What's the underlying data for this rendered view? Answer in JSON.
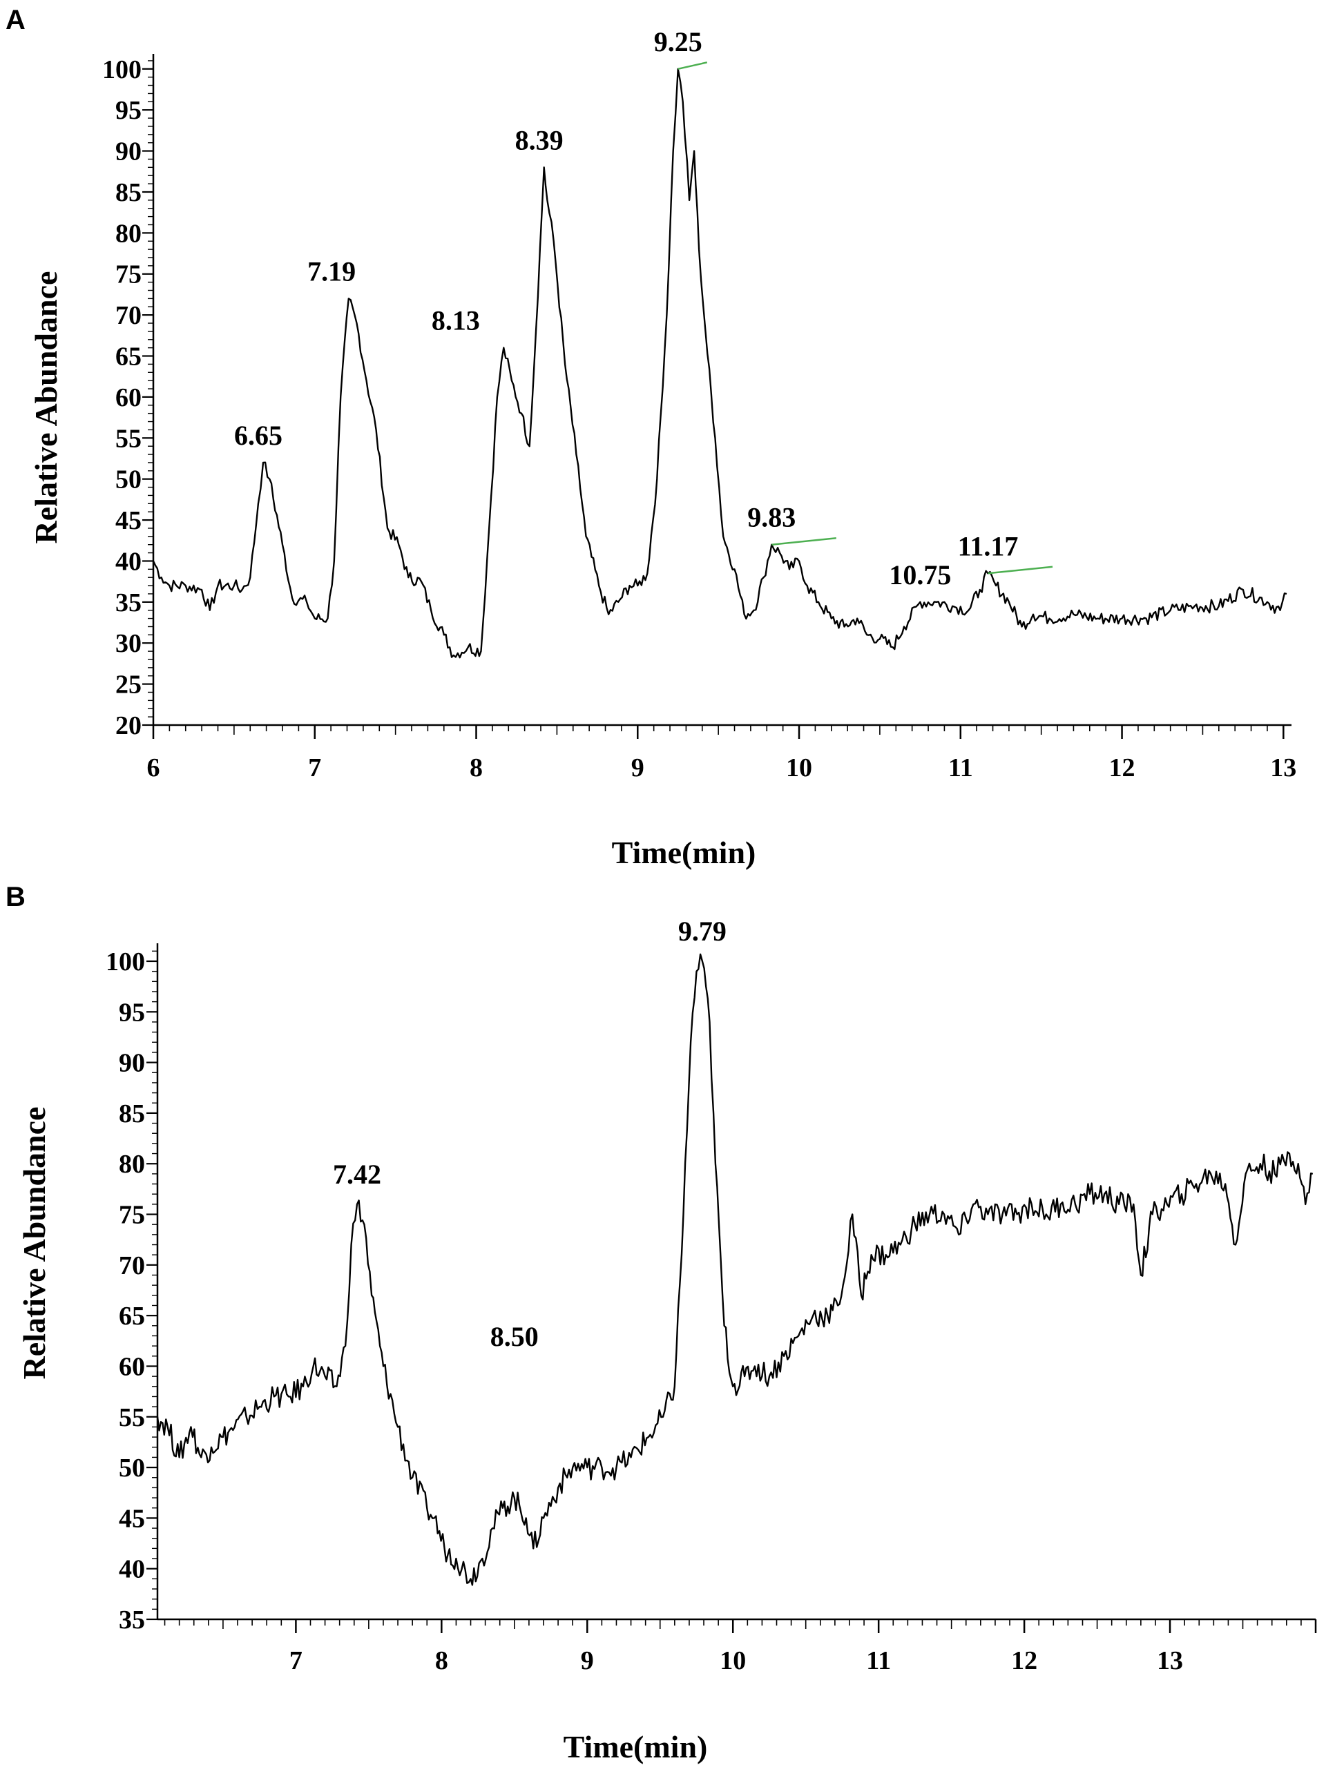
{
  "figure": {
    "panels": [
      "A",
      "B"
    ]
  },
  "chart_data": [
    {
      "panel": "A",
      "type": "line",
      "xlabel": "Time(min)",
      "ylabel": "Relative Abundance",
      "xlim": [
        6,
        13.05
      ],
      "ylim": [
        20,
        101.5
      ],
      "xticks": [
        6,
        7,
        8,
        9,
        10,
        11,
        12,
        13
      ],
      "yticks": [
        20,
        25,
        30,
        35,
        40,
        45,
        50,
        55,
        60,
        65,
        70,
        75,
        80,
        85,
        90,
        95,
        100
      ],
      "grid": false,
      "line_color": "#000000",
      "marker_color": "#4caf50",
      "series": [
        {
          "values": [
            [
              6.0,
              40
            ],
            [
              6.05,
              38
            ],
            [
              6.1,
              37
            ],
            [
              6.2,
              37
            ],
            [
              6.3,
              36.5
            ],
            [
              6.35,
              34
            ],
            [
              6.4,
              37
            ],
            [
              6.5,
              37
            ],
            [
              6.55,
              36.5
            ],
            [
              6.6,
              38
            ],
            [
              6.65,
              47
            ],
            [
              6.68,
              52
            ],
            [
              6.72,
              50
            ],
            [
              6.8,
              42
            ],
            [
              6.86,
              35.5
            ],
            [
              6.95,
              35
            ],
            [
              7.0,
              33
            ],
            [
              7.08,
              33
            ],
            [
              7.12,
              40
            ],
            [
              7.16,
              60
            ],
            [
              7.21,
              72
            ],
            [
              7.26,
              69
            ],
            [
              7.32,
              62
            ],
            [
              7.38,
              56
            ],
            [
              7.45,
              44
            ],
            [
              7.52,
              42
            ],
            [
              7.58,
              38
            ],
            [
              7.66,
              37.5
            ],
            [
              7.72,
              34
            ],
            [
              7.8,
              31
            ],
            [
              7.86,
              28.5
            ],
            [
              7.95,
              29.5
            ],
            [
              8.03,
              29
            ],
            [
              8.08,
              44
            ],
            [
              8.13,
              60
            ],
            [
              8.17,
              66
            ],
            [
              8.22,
              62
            ],
            [
              8.28,
              58
            ],
            [
              8.33,
              54
            ],
            [
              8.37,
              68
            ],
            [
              8.42,
              88
            ],
            [
              8.44,
              84
            ],
            [
              8.48,
              79
            ],
            [
              8.55,
              64
            ],
            [
              8.62,
              53
            ],
            [
              8.68,
              43
            ],
            [
              8.76,
              37
            ],
            [
              8.82,
              33.5
            ],
            [
              8.88,
              35
            ],
            [
              8.95,
              37
            ],
            [
              9.0,
              37
            ],
            [
              9.06,
              38.5
            ],
            [
              9.12,
              50
            ],
            [
              9.18,
              70
            ],
            [
              9.22,
              90
            ],
            [
              9.25,
              100
            ],
            [
              9.28,
              96
            ],
            [
              9.32,
              84
            ],
            [
              9.35,
              90
            ],
            [
              9.38,
              78
            ],
            [
              9.42,
              68
            ],
            [
              9.48,
              55
            ],
            [
              9.53,
              43
            ],
            [
              9.6,
              39
            ],
            [
              9.66,
              33.5
            ],
            [
              9.72,
              34
            ],
            [
              9.78,
              38
            ],
            [
              9.83,
              42
            ],
            [
              9.88,
              41
            ],
            [
              9.94,
              39
            ],
            [
              10.0,
              40
            ],
            [
              10.05,
              37
            ],
            [
              10.12,
              35
            ],
            [
              10.2,
              33
            ],
            [
              10.28,
              32
            ],
            [
              10.36,
              33
            ],
            [
              10.42,
              31
            ],
            [
              10.5,
              30.5
            ],
            [
              10.58,
              29.5
            ],
            [
              10.65,
              32
            ],
            [
              10.75,
              35
            ],
            [
              10.85,
              35
            ],
            [
              10.95,
              34.5
            ],
            [
              11.05,
              34
            ],
            [
              11.12,
              36.5
            ],
            [
              11.17,
              38.5
            ],
            [
              11.22,
              37
            ],
            [
              11.3,
              35
            ],
            [
              11.38,
              32
            ],
            [
              11.45,
              33.5
            ],
            [
              11.55,
              33
            ],
            [
              11.7,
              33.5
            ],
            [
              11.85,
              33
            ],
            [
              12.0,
              33
            ],
            [
              12.15,
              33
            ],
            [
              12.3,
              34
            ],
            [
              12.45,
              34.5
            ],
            [
              12.6,
              34.5
            ],
            [
              12.75,
              36.5
            ],
            [
              12.9,
              35
            ],
            [
              12.98,
              34
            ],
            [
              13.02,
              36
            ]
          ]
        }
      ],
      "annotations": [
        {
          "text": "6.65",
          "x": 6.65,
          "y": 52
        },
        {
          "text": "7.19",
          "x": 7.19,
          "y": 72
        },
        {
          "text": "8.13",
          "x": 8.13,
          "y": 66
        },
        {
          "text": "8.39",
          "x": 8.39,
          "y": 88
        },
        {
          "text": "9.25",
          "x": 9.25,
          "y": 100
        },
        {
          "text": "9.83",
          "x": 9.83,
          "y": 42
        },
        {
          "text": "10.75",
          "x": 10.75,
          "y": 35
        },
        {
          "text": "11.17",
          "x": 11.17,
          "y": 38.5
        }
      ]
    },
    {
      "panel": "B",
      "type": "line",
      "xlabel": "Time(min)",
      "ylabel": "Relative Abundance",
      "xlim": [
        6.05,
        14.0
      ],
      "ylim": [
        35,
        101.5
      ],
      "xticks": [
        7,
        8,
        9,
        10,
        11,
        12,
        13
      ],
      "yticks": [
        35,
        40,
        45,
        50,
        55,
        60,
        65,
        70,
        75,
        80,
        85,
        90,
        95,
        100
      ],
      "grid": false,
      "line_color": "#000000",
      "series": [
        {
          "values": [
            [
              6.05,
              55
            ],
            [
              6.12,
              54
            ],
            [
              6.2,
              51
            ],
            [
              6.28,
              54
            ],
            [
              6.35,
              51
            ],
            [
              6.42,
              52
            ],
            [
              6.5,
              53
            ],
            [
              6.58,
              54
            ],
            [
              6.66,
              55
            ],
            [
              6.75,
              56
            ],
            [
              6.85,
              57
            ],
            [
              6.95,
              57
            ],
            [
              7.05,
              58
            ],
            [
              7.12,
              60
            ],
            [
              7.2,
              59
            ],
            [
              7.28,
              58
            ],
            [
              7.34,
              62
            ],
            [
              7.38,
              72
            ],
            [
              7.42,
              76
            ],
            [
              7.47,
              74
            ],
            [
              7.52,
              67
            ],
            [
              7.6,
              60
            ],
            [
              7.7,
              54
            ],
            [
              7.8,
              49
            ],
            [
              7.9,
              46
            ],
            [
              7.95,
              45
            ],
            [
              8.02,
              42
            ],
            [
              8.1,
              41
            ],
            [
              8.2,
              39
            ],
            [
              8.28,
              41
            ],
            [
              8.35,
              44
            ],
            [
              8.42,
              46
            ],
            [
              8.5,
              47
            ],
            [
              8.58,
              45
            ],
            [
              8.63,
              42
            ],
            [
              8.7,
              45
            ],
            [
              8.8,
              48
            ],
            [
              8.9,
              50
            ],
            [
              9.0,
              50
            ],
            [
              9.1,
              50
            ],
            [
              9.2,
              50
            ],
            [
              9.3,
              51
            ],
            [
              9.42,
              53
            ],
            [
              9.52,
              55
            ],
            [
              9.6,
              58
            ],
            [
              9.66,
              75
            ],
            [
              9.71,
              92
            ],
            [
              9.75,
              99
            ],
            [
              9.79,
              100
            ],
            [
              9.84,
              94
            ],
            [
              9.88,
              80
            ],
            [
              9.94,
              64
            ],
            [
              10.0,
              58
            ],
            [
              10.08,
              59
            ],
            [
              10.15,
              60
            ],
            [
              10.25,
              59
            ],
            [
              10.35,
              61
            ],
            [
              10.45,
              63
            ],
            [
              10.55,
              65
            ],
            [
              10.65,
              65
            ],
            [
              10.72,
              66
            ],
            [
              10.78,
              70
            ],
            [
              10.82,
              75
            ],
            [
              10.88,
              67
            ],
            [
              10.95,
              71
            ],
            [
              11.05,
              71
            ],
            [
              11.15,
              72
            ],
            [
              11.25,
              74
            ],
            [
              11.35,
              75
            ],
            [
              11.45,
              75
            ],
            [
              11.55,
              73
            ],
            [
              11.65,
              76
            ],
            [
              11.75,
              75
            ],
            [
              11.85,
              75
            ],
            [
              11.95,
              75
            ],
            [
              12.05,
              76
            ],
            [
              12.15,
              75
            ],
            [
              12.25,
              76
            ],
            [
              12.35,
              76
            ],
            [
              12.45,
              77
            ],
            [
              12.55,
              77
            ],
            [
              12.65,
              76
            ],
            [
              12.75,
              76
            ],
            [
              12.8,
              69
            ],
            [
              12.88,
              75
            ],
            [
              12.98,
              76
            ],
            [
              13.08,
              77
            ],
            [
              13.18,
              78
            ],
            [
              13.28,
              79
            ],
            [
              13.38,
              78
            ],
            [
              13.45,
              72
            ],
            [
              13.52,
              79
            ],
            [
              13.62,
              80
            ],
            [
              13.72,
              79
            ],
            [
              13.82,
              81
            ],
            [
              13.88,
              80
            ],
            [
              13.93,
              76
            ],
            [
              13.98,
              79
            ]
          ]
        }
      ],
      "annotations": [
        {
          "text": "7.42",
          "x": 7.42,
          "y": 76
        },
        {
          "text": "8.50",
          "x": 8.5,
          "y": 47
        },
        {
          "text": "9.79",
          "x": 9.79,
          "y": 100
        }
      ]
    }
  ]
}
